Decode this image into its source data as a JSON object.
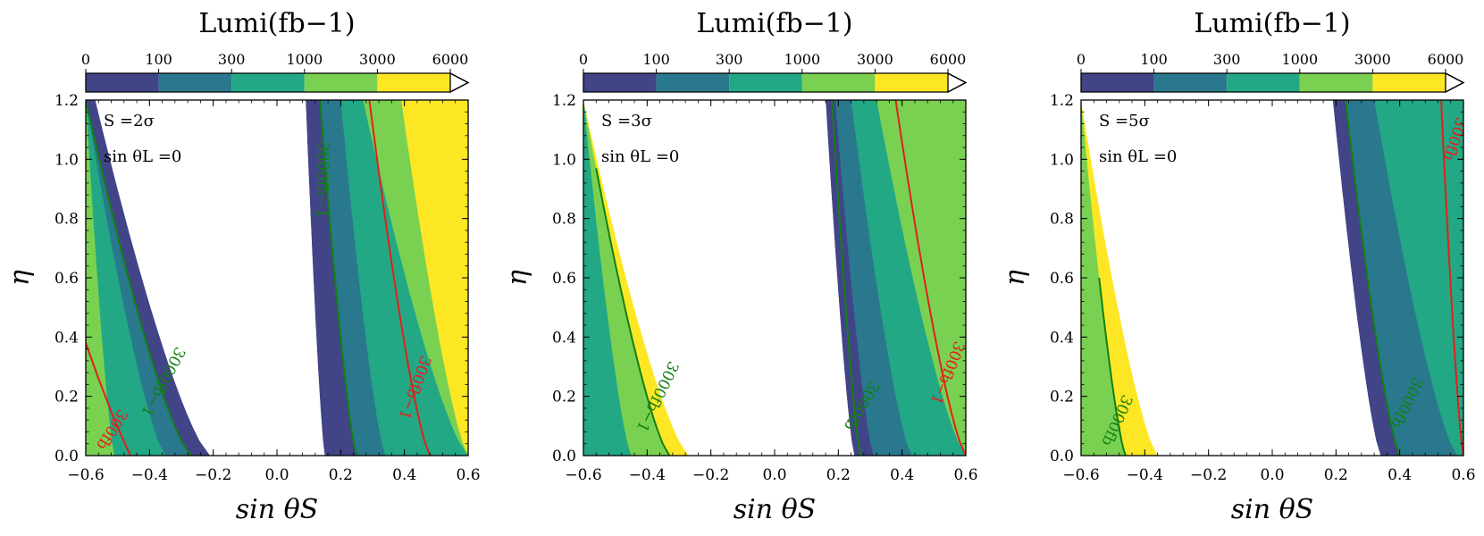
{
  "colorbar": {
    "title": "Lumi(fb−1)",
    "levels": [
      "0",
      "100",
      "300",
      "1000",
      "3000",
      "6000"
    ],
    "colors": [
      "#414487",
      "#2a788e",
      "#22a884",
      "#7ad151",
      "#fde725"
    ]
  },
  "line_colors": {
    "green": "#138013",
    "red": "#e0201b"
  },
  "chart_data": [
    {
      "type": "contourf",
      "annotation": "S =2σ",
      "annotation2": "sin θL =0",
      "xlabel": "sin θS",
      "ylabel": "η",
      "xlim": [
        -0.6,
        0.6
      ],
      "ylim": [
        0,
        1.2
      ],
      "xticks": [
        "−0.6",
        "−0.4",
        "−0.2",
        "0.0",
        "0.2",
        "0.4",
        "0.6"
      ],
      "yticks": [
        "0.0",
        "0.2",
        "0.4",
        "0.6",
        "0.8",
        "1.0",
        "1.2"
      ],
      "left_bands": [
        {
          "x0": -0.6,
          "x1": -0.6,
          "color": 4
        },
        {
          "x0": -0.51,
          "x1": -0.6,
          "color": 3
        },
        {
          "x0": -0.35,
          "x1": -0.6,
          "color": 2
        },
        {
          "x0": -0.27,
          "x1": -0.6,
          "color": 1
        },
        {
          "x0": -0.21,
          "x1": -0.57,
          "color": 0
        }
      ],
      "right_bands": [
        {
          "x0": 0.15,
          "x1": 0.09,
          "color": 0
        },
        {
          "x0": 0.25,
          "x1": 0.135,
          "color": 1
        },
        {
          "x0": 0.34,
          "x1": 0.2,
          "color": 2
        },
        {
          "x0": 0.6,
          "x1": 0.27,
          "color": 3
        },
        {
          "x0": 0.6,
          "x1": 0.39,
          "color": 4
        }
      ],
      "lines": [
        {
          "x0": -0.27,
          "x1": -0.6,
          "xmid": -0.43,
          "ytop": 1.2,
          "color": "green",
          "label": "3000fb−1",
          "lx": -0.36,
          "ly": 0.25,
          "rot": -62
        },
        {
          "x0": -0.61,
          "x1": -0.61,
          "xmid": -0.61,
          "ytop": 1.2,
          "color": "red",
          "label": "300fb",
          "lx": -0.52,
          "ly": 0.09,
          "rot": -58,
          "end": [
            [
              -0.6,
              0.38
            ],
            [
              -0.56,
              0.26
            ],
            [
              -0.51,
              0.12
            ],
            [
              -0.46,
              0.0
            ]
          ]
        },
        {
          "x0": 0.25,
          "x1": 0.135,
          "xmid": 0.16,
          "ytop": 1.2,
          "color": "green",
          "label": "3000fb−1",
          "lx": 0.14,
          "ly": 0.93,
          "rot": -88
        },
        {
          "x0": 0.48,
          "x1": 0.29,
          "xmid": 0.36,
          "ytop": 1.2,
          "color": "red",
          "label": "300fb−1",
          "lx": 0.43,
          "ly": 0.23,
          "rot": -70
        }
      ]
    },
    {
      "type": "contourf",
      "annotation": "S =3σ",
      "annotation2": "sin θL =0",
      "xlabel": "sin θS",
      "ylabel": "η",
      "xlim": [
        -0.6,
        0.6
      ],
      "ylim": [
        0,
        1.2
      ],
      "xticks": [
        "−0.6",
        "−0.4",
        "−0.2",
        "0.0",
        "0.2",
        "0.4",
        "0.6"
      ],
      "yticks": [
        "0.0",
        "0.2",
        "0.4",
        "0.6",
        "0.8",
        "1.0",
        "1.2"
      ],
      "left_bands": [
        {
          "x0": -0.45,
          "x1": -0.6,
          "color": 2
        },
        {
          "x0": -0.33,
          "x1": -0.6,
          "color": 3
        },
        {
          "x0": -0.27,
          "x1": -0.6,
          "color": 4
        }
      ],
      "right_bands": [
        {
          "x0": 0.25,
          "x1": 0.16,
          "color": 0
        },
        {
          "x0": 0.31,
          "x1": 0.19,
          "color": 1
        },
        {
          "x0": 0.43,
          "x1": 0.24,
          "color": 2
        },
        {
          "x0": 0.6,
          "x1": 0.32,
          "color": 3
        },
        {
          "x0": 0.6,
          "x1": 0.6,
          "color": 4
        }
      ],
      "lines": [
        {
          "x0": -0.33,
          "x1": -0.6,
          "xmid": -0.5,
          "ytop": 0.97,
          "color": "green",
          "label": "3000fb−1",
          "lx": -0.37,
          "ly": 0.2,
          "rot": -64
        },
        {
          "x0": 0.27,
          "x1": 0.18,
          "xmid": 0.2,
          "ytop": 1.2,
          "color": "green",
          "label": "3000fb",
          "lx": 0.27,
          "ly": 0.17,
          "rot": -60
        },
        {
          "x0": 0.6,
          "x1": 0.38,
          "xmid": 0.45,
          "ytop": 1.2,
          "color": "red",
          "label": "300fb−1",
          "lx": 0.54,
          "ly": 0.28,
          "rot": -68
        }
      ]
    },
    {
      "type": "contourf",
      "annotation": "S =5σ",
      "annotation2": "sin θL =0",
      "xlabel": "sin θS",
      "ylabel": "η",
      "xlim": [
        -0.6,
        0.6
      ],
      "ylim": [
        0,
        1.2
      ],
      "xticks": [
        "−0.6",
        "−0.4",
        "−0.2",
        "0.0",
        "0.2",
        "0.4",
        "0.6"
      ],
      "yticks": [
        "0.0",
        "0.2",
        "0.4",
        "0.6",
        "0.8",
        "1.0",
        "1.2"
      ],
      "left_bands": [
        {
          "x0": -0.46,
          "x1": -0.6,
          "color": 3
        },
        {
          "x0": -0.36,
          "x1": -0.6,
          "color": 4
        }
      ],
      "right_bands": [
        {
          "x0": 0.34,
          "x1": 0.19,
          "color": 0
        },
        {
          "x0": 0.4,
          "x1": 0.23,
          "color": 1
        },
        {
          "x0": 0.58,
          "x1": 0.32,
          "color": 2
        }
      ],
      "lines": [
        {
          "x0": -0.46,
          "x1": -0.6,
          "xmid": -0.56,
          "ytop": 0.6,
          "color": "green",
          "label": "3000fb",
          "lx": -0.49,
          "ly": 0.12,
          "rot": -66
        },
        {
          "x0": 0.4,
          "x1": 0.23,
          "xmid": 0.26,
          "ytop": 1.2,
          "color": "green",
          "label": "3000fb",
          "lx": 0.42,
          "ly": 0.18,
          "rot": -64
        },
        {
          "x0": 0.6,
          "x1": 0.53,
          "xmid": 0.56,
          "ytop": 1.2,
          "color": "red",
          "label": "300fb",
          "lx": 0.57,
          "ly": 1.07,
          "rot": -72
        }
      ]
    }
  ]
}
